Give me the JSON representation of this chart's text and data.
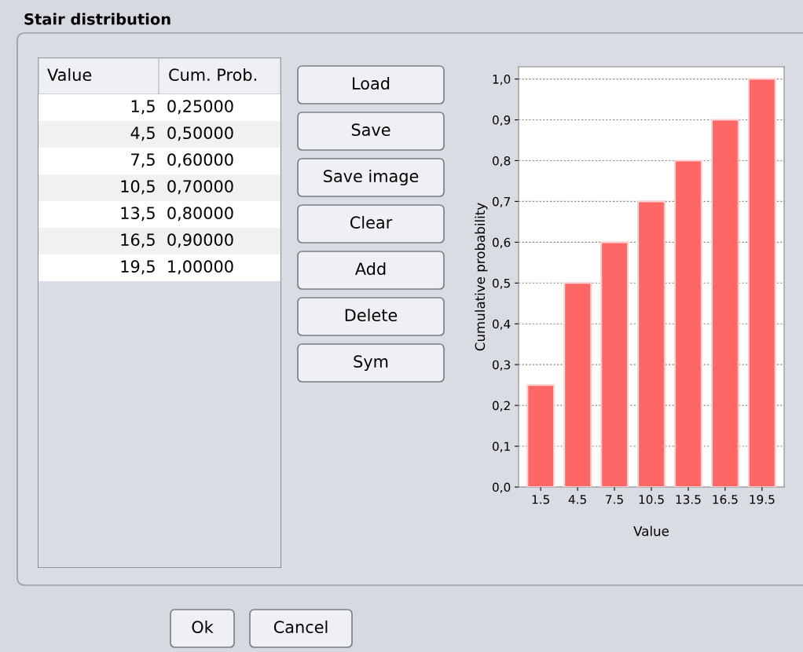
{
  "chart_data": [
    {
      "type": "other",
      "title": "Stair distribution"
    },
    {
      "type": "other",
      "annotations": [
        "Value",
        "Cum. Prob.",
        "1,5  0,25000",
        "4,5  0,50000",
        "7,5  0,60000",
        "10,5  0,70000",
        "13,5  0,80000",
        "16,5  0,90000",
        "19,5  1,00000"
      ]
    },
    {
      "type": "other",
      "annotations": [
        "Load",
        "Save",
        "Save image",
        "Clear",
        "Add",
        "Delete",
        "Sym"
      ]
    },
    {
      "type": "bar",
      "categories": [
        "1.5",
        "4.5",
        "7.5",
        "10.5",
        "13.5",
        "16.5",
        "19.5"
      ],
      "values": [
        0.25,
        0.5,
        0.6,
        0.7,
        0.8,
        0.9,
        1.0
      ],
      "color": "#ff6666",
      "xlabel": "Value",
      "ylabel": "Cumulative probability",
      "ylim": [
        0,
        1.03
      ],
      "yticks": [
        {
          "value": 0,
          "label": "0,0"
        },
        {
          "value": 0.1,
          "label": "0,1"
        },
        {
          "value": 0.2,
          "label": "0,2"
        },
        {
          "value": 0.3,
          "label": "0,3"
        },
        {
          "value": 0.4,
          "label": "0,4"
        },
        {
          "value": 0.5,
          "label": "0,5"
        },
        {
          "value": 0.6,
          "label": "0,6"
        },
        {
          "value": 0.7,
          "label": "0,7"
        },
        {
          "value": 0.8,
          "label": "0,8"
        },
        {
          "value": 0.9,
          "label": "0,9"
        },
        {
          "value": 1.0,
          "label": "1,0"
        }
      ],
      "grid": "y"
    },
    {
      "type": "other",
      "annotations": [
        "Ok",
        "Cancel"
      ]
    }
  ]
}
